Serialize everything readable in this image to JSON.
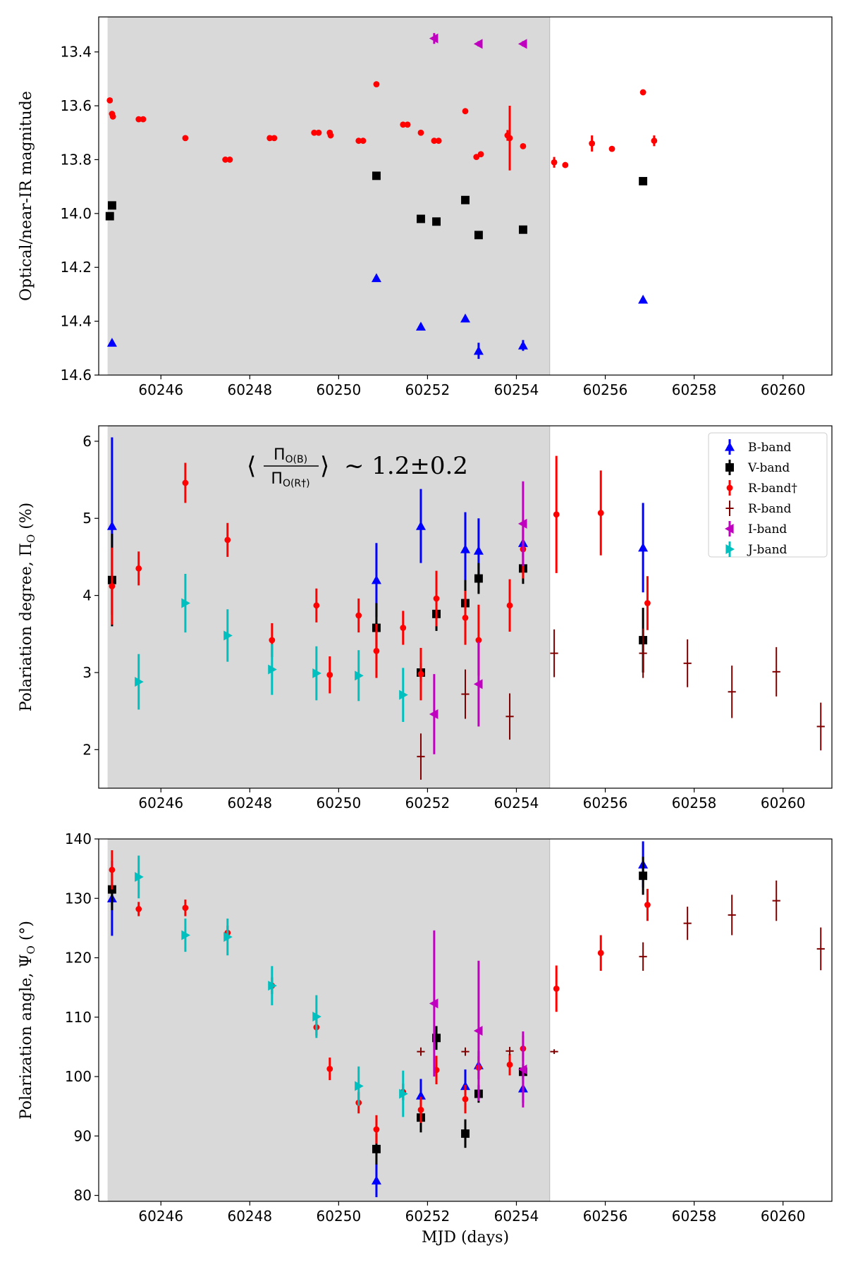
{
  "chart_data": [
    {
      "type": "scatter",
      "panel": "top",
      "title": "",
      "xlabel": "",
      "ylabel": "Optical/near-IR magnitude",
      "xlim": [
        60244.6,
        60261.1
      ],
      "ylim": [
        14.6,
        13.27
      ],
      "y_inverted": true,
      "xticks": [
        60246,
        60248,
        60250,
        60252,
        60254,
        60256,
        60258,
        60260
      ],
      "yticks": [
        13.4,
        13.6,
        13.8,
        14.0,
        14.2,
        14.4,
        14.6
      ],
      "ytick_labels": [
        "13.4",
        "13.6",
        "13.8",
        "14.0",
        "14.2",
        "14.4",
        "14.6"
      ],
      "shaded_region": [
        60244.8,
        60254.75
      ],
      "series": [
        {
          "name": "B-band",
          "color": "#0000ff",
          "marker": "triangle-up",
          "x": [
            60244.9,
            60250.85,
            60251.85,
            60252.85,
            60253.15,
            60254.15,
            60256.85
          ],
          "y": [
            14.48,
            14.24,
            14.42,
            14.39,
            14.51,
            14.49,
            14.32
          ],
          "err": [
            0.01,
            0.01,
            0.01,
            0.01,
            0.03,
            0.02,
            0.01
          ]
        },
        {
          "name": "V-band",
          "color": "#000000",
          "marker": "square",
          "x": [
            60244.85,
            60244.9,
            60250.85,
            60251.85,
            60252.2,
            60252.85,
            60253.15,
            60254.15,
            60256.85
          ],
          "y": [
            14.01,
            13.97,
            13.86,
            14.02,
            14.03,
            13.95,
            14.08,
            14.06,
            13.88
          ],
          "err": [
            0.01,
            0.01,
            0.01,
            0.01,
            0.01,
            0.01,
            0.01,
            0.01,
            0.01
          ]
        },
        {
          "name": "R-band†",
          "color": "#ff0000",
          "marker": "circle",
          "x": [
            60244.85,
            60244.9,
            60244.92,
            60245.5,
            60245.6,
            60246.55,
            60247.45,
            60247.55,
            60248.45,
            60248.55,
            60249.45,
            60249.55,
            60249.8,
            60249.82,
            60250.45,
            60250.55,
            60250.85,
            60251.45,
            60251.55,
            60251.85,
            60252.15,
            60252.25,
            60252.85,
            60253.1,
            60253.2,
            60253.8,
            60253.85,
            60254.15,
            60254.85,
            60255.1,
            60255.7,
            60256.15,
            60256.85,
            60257.1
          ],
          "y": [
            13.58,
            13.63,
            13.64,
            13.65,
            13.65,
            13.72,
            13.8,
            13.8,
            13.72,
            13.72,
            13.7,
            13.7,
            13.7,
            13.71,
            13.73,
            13.73,
            13.52,
            13.67,
            13.67,
            13.7,
            13.73,
            13.73,
            13.62,
            13.79,
            13.78,
            13.71,
            13.72,
            13.75,
            13.81,
            13.82,
            13.74,
            13.76,
            13.55,
            13.73
          ],
          "err": [
            0.005,
            0.005,
            0.005,
            0.005,
            0.005,
            0.005,
            0.005,
            0.005,
            0.005,
            0.005,
            0.005,
            0.005,
            0.005,
            0.005,
            0.005,
            0.005,
            0.005,
            0.005,
            0.005,
            0.005,
            0.005,
            0.005,
            0.005,
            0.005,
            0.005,
            0.02,
            0.12,
            0.005,
            0.02,
            0.005,
            0.03,
            0.005,
            0.005,
            0.02
          ]
        },
        {
          "name": "I-band",
          "color": "#bf00bf",
          "marker": "triangle-left",
          "x": [
            60252.15,
            60253.15,
            60254.15
          ],
          "y": [
            13.35,
            13.37,
            13.37
          ],
          "err": [
            0.02,
            0.01,
            0.01
          ]
        }
      ]
    },
    {
      "type": "scatter",
      "panel": "middle",
      "title": "",
      "xlabel": "",
      "ylabel": "Polariation degree, ΠO (%)",
      "ylabel_main": "Polariation degree, Π",
      "ylabel_sub": "O",
      "ylabel_tail": " (%)",
      "xlim": [
        60244.6,
        60261.1
      ],
      "ylim": [
        1.5,
        6.2
      ],
      "xticks": [
        60246,
        60248,
        60250,
        60252,
        60254,
        60256,
        60258,
        60260
      ],
      "yticks": [
        2,
        3,
        4,
        5,
        6
      ],
      "ytick_labels": [
        "2",
        "3",
        "4",
        "5",
        "6"
      ],
      "shaded_region": [
        60244.8,
        60254.75
      ],
      "annotation": {
        "text": "⟨ΠO(B) / ΠO(R†)⟩ ~ 1.2±0.2",
        "numerator_main": "Π",
        "numerator_sub": "O(B)",
        "denominator_main": "Π",
        "denominator_sub": "O(R†)",
        "value": "~ 1.2±0.2"
      },
      "legend": {
        "position": "upper right",
        "entries": [
          "B-band",
          "V-band",
          "R-band†",
          "R-band",
          "I-band",
          "J-band"
        ]
      },
      "series": [
        {
          "name": "B-band",
          "color": "#0000ff",
          "marker": "triangle-up",
          "x": [
            60244.9,
            60250.85,
            60251.85,
            60252.85,
            60253.15,
            60254.15,
            60256.85
          ],
          "y": [
            4.9,
            4.2,
            4.9,
            4.6,
            4.58,
            4.68,
            4.62
          ],
          "err": [
            1.15,
            0.48,
            0.48,
            0.48,
            0.42,
            0.18,
            0.58
          ]
        },
        {
          "name": "V-band",
          "color": "#000000",
          "marker": "square",
          "x": [
            60244.9,
            60250.85,
            60251.85,
            60252.2,
            60252.85,
            60253.15,
            60254.15,
            60256.85
          ],
          "y": [
            4.2,
            3.58,
            3.0,
            3.76,
            3.9,
            4.22,
            4.35,
            3.42
          ],
          "err": [
            0.6,
            0.32,
            0.12,
            0.22,
            0.3,
            0.2,
            0.2,
            0.42
          ]
        },
        {
          "name": "R-band†",
          "color": "#ff0000",
          "marker": "circle",
          "x": [
            60244.9,
            60245.5,
            60246.55,
            60247.5,
            60248.5,
            60249.5,
            60249.8,
            60250.45,
            60250.85,
            60251.45,
            60251.85,
            60252.2,
            60252.85,
            60253.15,
            60253.85,
            60254.15,
            60254.9,
            60255.9,
            60256.95
          ],
          "y": [
            4.12,
            4.35,
            5.46,
            4.72,
            3.42,
            3.87,
            2.97,
            3.74,
            3.28,
            3.58,
            2.98,
            3.96,
            3.71,
            3.42,
            3.87,
            4.6,
            5.05,
            5.07,
            3.9
          ],
          "err": [
            0.5,
            0.22,
            0.26,
            0.22,
            0.22,
            0.22,
            0.24,
            0.22,
            0.35,
            0.22,
            0.34,
            0.36,
            0.35,
            0.46,
            0.34,
            0.38,
            0.76,
            0.55,
            0.35
          ]
        },
        {
          "name": "R-band",
          "color": "#800000",
          "marker": "plus",
          "x": [
            60251.85,
            60252.85,
            60253.85,
            60254.85,
            60256.85,
            60257.85,
            60258.85,
            60259.85,
            60260.85
          ],
          "y": [
            1.91,
            2.72,
            2.43,
            3.25,
            3.25,
            3.12,
            2.75,
            3.01,
            2.3
          ],
          "err": [
            0.3,
            0.32,
            0.3,
            0.31,
            0.32,
            0.31,
            0.34,
            0.32,
            0.31
          ]
        },
        {
          "name": "I-band",
          "color": "#bf00bf",
          "marker": "triangle-left",
          "x": [
            60252.15,
            60253.15,
            60254.15
          ],
          "y": [
            2.46,
            2.85,
            4.93
          ],
          "err": [
            0.52,
            0.55,
            0.55
          ]
        },
        {
          "name": "J-band",
          "color": "#00bfbf",
          "marker": "triangle-right",
          "x": [
            60245.5,
            60246.55,
            60247.5,
            60248.5,
            60249.5,
            60250.45,
            60251.45
          ],
          "y": [
            2.88,
            3.9,
            3.48,
            3.04,
            2.99,
            2.96,
            2.71
          ],
          "err": [
            0.36,
            0.38,
            0.34,
            0.33,
            0.35,
            0.33,
            0.35
          ]
        }
      ]
    },
    {
      "type": "scatter",
      "panel": "bottom",
      "title": "",
      "xlabel": "MJD (days)",
      "ylabel": "Polarization angle, ΨO (°)",
      "ylabel_main": "Polarization angle, Ψ",
      "ylabel_sub": "O",
      "ylabel_tail": " (°)",
      "xlim": [
        60244.6,
        60261.1
      ],
      "ylim": [
        79,
        140
      ],
      "xticks": [
        60246,
        60248,
        60250,
        60252,
        60254,
        60256,
        60258,
        60260
      ],
      "yticks": [
        80,
        90,
        100,
        110,
        120,
        130,
        140
      ],
      "ytick_labels": [
        "80",
        "90",
        "100",
        "110",
        "120",
        "130",
        "140"
      ],
      "shaded_region": [
        60244.8,
        60254.75
      ],
      "series": [
        {
          "name": "B-band",
          "color": "#0000ff",
          "marker": "triangle-up",
          "x": [
            60244.9,
            60250.85,
            60251.85,
            60252.85,
            60253.15,
            60254.15,
            60256.85
          ],
          "y": [
            130.0,
            82.5,
            96.8,
            98.4,
            101.9,
            98.0,
            135.7
          ],
          "err": [
            6.3,
            2.8,
            2.8,
            2.8,
            2.4,
            2.4,
            3.9
          ]
        },
        {
          "name": "V-band",
          "color": "#000000",
          "marker": "square",
          "x": [
            60244.9,
            60250.85,
            60251.85,
            60252.2,
            60252.85,
            60253.15,
            60254.15,
            60256.85
          ],
          "y": [
            131.5,
            87.8,
            93.1,
            106.5,
            90.4,
            97.1,
            100.8,
            133.8
          ],
          "err": [
            3.5,
            2.6,
            2.5,
            2.0,
            2.4,
            1.5,
            1.3,
            3.2
          ]
        },
        {
          "name": "R-band†",
          "color": "#ff0000",
          "marker": "circle",
          "x": [
            60244.9,
            60245.5,
            60246.55,
            60247.5,
            60248.5,
            60249.5,
            60249.8,
            60250.45,
            60250.85,
            60251.45,
            60251.85,
            60252.2,
            60252.85,
            60253.15,
            60253.85,
            60254.15,
            60254.9,
            60255.9,
            60256.95
          ],
          "y": [
            134.8,
            128.2,
            128.4,
            124.2,
            115.3,
            108.3,
            101.3,
            95.6,
            91.1,
            97.4,
            94.4,
            101.1,
            96.2,
            101.5,
            102.0,
            104.7,
            114.8,
            120.8,
            128.9
          ],
          "err": [
            3.3,
            1.2,
            1.4,
            1.2,
            1.4,
            1.4,
            1.9,
            1.8,
            2.4,
            1.4,
            2.2,
            2.4,
            2.4,
            1.9,
            1.8,
            2.2,
            3.9,
            3.0,
            2.7
          ]
        },
        {
          "name": "R-band",
          "color": "#800000",
          "marker": "plus",
          "x": [
            60251.85,
            60252.85,
            60253.85,
            60254.85,
            60256.85,
            60257.85,
            60258.85,
            60259.85,
            60260.85
          ],
          "y": [
            104.2,
            104.2,
            104.3,
            104.2,
            120.2,
            125.8,
            127.2,
            129.6,
            121.5
          ],
          "err": [
            0.7,
            0.7,
            0.7,
            0.4,
            2.4,
            2.8,
            3.4,
            3.4,
            3.6
          ]
        },
        {
          "name": "I-band",
          "color": "#bf00bf",
          "marker": "triangle-left",
          "x": [
            60252.15,
            60253.15,
            60254.15
          ],
          "y": [
            112.3,
            107.7,
            101.2
          ],
          "err": [
            12.3,
            11.8,
            6.4
          ]
        },
        {
          "name": "J-band",
          "color": "#00bfbf",
          "marker": "triangle-right",
          "x": [
            60245.5,
            60246.55,
            60247.5,
            60248.5,
            60249.5,
            60250.45,
            60251.45
          ],
          "y": [
            133.6,
            123.8,
            123.5,
            115.3,
            110.1,
            98.4,
            97.1
          ],
          "err": [
            3.6,
            2.8,
            3.1,
            3.3,
            3.6,
            3.3,
            3.9
          ]
        }
      ]
    }
  ]
}
